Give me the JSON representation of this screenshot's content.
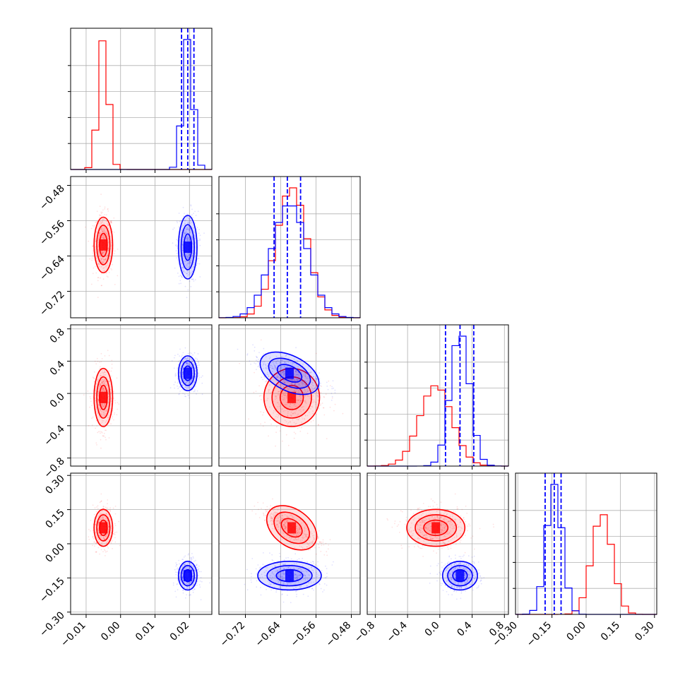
{
  "chart_data": {
    "type": "corner",
    "parameters": 4,
    "grid": true,
    "colors": {
      "series_a": "#ff0000",
      "series_b": "#0000ff"
    },
    "axes": [
      {
        "ticks": [
          -0.01,
          0.0,
          0.01,
          0.02
        ],
        "tick_labels": [
          "−0.01",
          "0.00",
          "0.01",
          "0.02"
        ],
        "range": [
          -0.0145,
          0.0265
        ]
      },
      {
        "ticks": [
          -0.72,
          -0.64,
          -0.56,
          -0.48
        ],
        "tick_labels": [
          "−0.72",
          "−0.64",
          "−0.56",
          "−0.48"
        ],
        "range": [
          -0.78,
          -0.46
        ]
      },
      {
        "ticks": [
          -0.8,
          -0.4,
          0.0,
          0.4,
          0.8
        ],
        "tick_labels": [
          "−0.8",
          "−0.4",
          "0.0",
          "0.4",
          "0.8"
        ],
        "range": [
          -0.9,
          0.85
        ]
      },
      {
        "ticks": [
          -0.3,
          -0.15,
          0.0,
          0.15,
          0.3
        ],
        "tick_labels": [
          "−0.30",
          "−0.15",
          "0.00",
          "0.15",
          "0.30"
        ],
        "range": [
          -0.31,
          0.31
        ]
      }
    ],
    "series": [
      {
        "color": "#ff0000",
        "mean": [
          -0.005,
          -0.615,
          -0.05,
          0.07
        ],
        "std": [
          0.0015,
          0.035,
          0.2,
          0.045
        ],
        "correlations": {
          "1-2": 0.0,
          "1-3": -0.8
        }
      },
      {
        "color": "#0000ff",
        "mean": [
          0.0195,
          -0.62,
          0.25,
          -0.14
        ],
        "std": [
          0.0015,
          0.04,
          0.12,
          0.035
        ],
        "correlations": {
          "1-2": -0.6
        }
      }
    ],
    "quantiles_blue": [
      [
        0.0177,
        0.0195,
        0.0213
      ],
      [
        -0.655,
        -0.625,
        -0.595
      ],
      [
        0.07,
        0.25,
        0.42
      ],
      [
        -0.18,
        -0.14,
        -0.11
      ]
    ]
  }
}
